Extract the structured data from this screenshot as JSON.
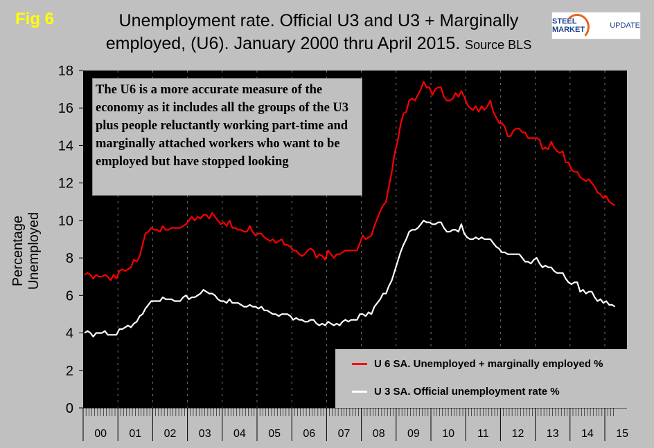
{
  "figure_label": "Fig 6",
  "title_line1": "Unemployment rate. Official U3 and U3 + Marginally",
  "title_line2": "employed, (U6). January 2000 thru April 2015.",
  "source": "Source BLS",
  "logo_text": {
    "a": "STEEL MARKET",
    "b": "UPDATE"
  },
  "annotation": "The U6 is a more accurate measure of the economy as it includes all the groups of the U3 plus people reluctantly working part-time and marginally attached workers who want to be employed but have stopped looking",
  "colors": {
    "background": "#c0c0c0",
    "plot": "#000000",
    "u6": "#ff0000",
    "u3": "#ffffff",
    "fig_label": "#ffff00"
  },
  "chart_data": {
    "type": "line",
    "title": "Unemployment rate. Official U3 and U3 + Marginally employed, (U6). January 2000 thru April 2015.",
    "xlabel": "",
    "ylabel": "Percentage Unemployed",
    "ylim": [
      0,
      18
    ],
    "yticks": [
      "0",
      "2",
      "4",
      "6",
      "8",
      "10",
      "12",
      "14",
      "16",
      "18"
    ],
    "xticks": [
      "00",
      "01",
      "02",
      "03",
      "04",
      "05",
      "06",
      "07",
      "08",
      "09",
      "10",
      "11",
      "12",
      "13",
      "14",
      "15"
    ],
    "x_range": [
      "2000-01",
      "2015-04"
    ],
    "frequency": "monthly",
    "grid": "vertical dashed at year boundaries",
    "legend": "bottom-right",
    "series": [
      {
        "name": "U 6 SA. Unemployed + marginally employed %",
        "color": "#ff0000",
        "values": [
          7.1,
          7.2,
          7.1,
          6.9,
          7.1,
          7.0,
          7.0,
          7.1,
          7.0,
          6.8,
          7.1,
          6.9,
          7.3,
          7.4,
          7.3,
          7.4,
          7.5,
          7.9,
          7.8,
          8.1,
          8.7,
          9.3,
          9.4,
          9.6,
          9.5,
          9.5,
          9.4,
          9.7,
          9.5,
          9.5,
          9.6,
          9.6,
          9.6,
          9.6,
          9.7,
          9.8,
          10.0,
          10.2,
          10.0,
          10.2,
          10.1,
          10.3,
          10.3,
          10.1,
          10.4,
          10.2,
          10.0,
          9.8,
          9.9,
          9.7,
          10.0,
          9.6,
          9.6,
          9.5,
          9.5,
          9.4,
          9.4,
          9.7,
          9.4,
          9.2,
          9.3,
          9.3,
          9.1,
          9.0,
          8.9,
          9.0,
          8.8,
          8.9,
          9.0,
          8.7,
          8.7,
          8.6,
          8.4,
          8.4,
          8.2,
          8.1,
          8.2,
          8.4,
          8.5,
          8.4,
          8.0,
          8.2,
          8.1,
          7.9,
          8.4,
          8.2,
          8.0,
          8.2,
          8.2,
          8.3,
          8.4,
          8.4,
          8.4,
          8.4,
          8.4,
          8.8,
          9.2,
          9.0,
          9.1,
          9.2,
          9.7,
          10.1,
          10.5,
          10.8,
          11.0,
          11.8,
          12.6,
          13.6,
          14.2,
          15.1,
          15.7,
          15.8,
          16.4,
          16.5,
          16.4,
          16.7,
          17.0,
          17.4,
          17.1,
          17.1,
          16.7,
          17.0,
          17.1,
          17.1,
          16.6,
          16.4,
          16.4,
          16.5,
          16.8,
          16.6,
          16.9,
          16.6,
          16.2,
          16.0,
          15.9,
          16.1,
          15.8,
          16.1,
          15.9,
          16.1,
          16.4,
          15.8,
          15.5,
          15.2,
          15.2,
          15.0,
          14.5,
          14.5,
          14.8,
          14.9,
          14.9,
          14.7,
          14.7,
          14.4,
          14.4,
          14.4,
          14.4,
          14.3,
          13.8,
          13.9,
          13.8,
          14.2,
          13.9,
          13.7,
          13.6,
          13.7,
          13.1,
          13.1,
          12.7,
          12.6,
          12.6,
          12.3,
          12.2,
          12.1,
          12.2,
          12.0,
          11.8,
          11.5,
          11.4,
          11.2,
          11.3,
          11.0,
          10.9,
          10.8
        ]
      },
      {
        "name": "U 3 SA. Official unemployment rate %",
        "color": "#ffffff",
        "values": [
          4.0,
          4.1,
          4.0,
          3.8,
          4.0,
          4.0,
          4.0,
          4.1,
          3.9,
          3.9,
          3.9,
          3.9,
          4.2,
          4.2,
          4.3,
          4.4,
          4.3,
          4.5,
          4.6,
          4.9,
          5.0,
          5.3,
          5.5,
          5.7,
          5.7,
          5.7,
          5.7,
          5.9,
          5.8,
          5.8,
          5.8,
          5.7,
          5.7,
          5.7,
          5.9,
          6.0,
          5.8,
          5.9,
          5.9,
          6.0,
          6.1,
          6.3,
          6.2,
          6.1,
          6.1,
          6.0,
          5.8,
          5.7,
          5.7,
          5.6,
          5.8,
          5.6,
          5.6,
          5.6,
          5.5,
          5.4,
          5.4,
          5.5,
          5.4,
          5.4,
          5.3,
          5.4,
          5.2,
          5.2,
          5.1,
          5.0,
          5.0,
          4.9,
          5.0,
          5.0,
          5.0,
          4.9,
          4.7,
          4.8,
          4.7,
          4.7,
          4.6,
          4.6,
          4.7,
          4.7,
          4.5,
          4.4,
          4.5,
          4.4,
          4.6,
          4.5,
          4.4,
          4.5,
          4.4,
          4.6,
          4.7,
          4.6,
          4.7,
          4.7,
          4.7,
          5.0,
          5.0,
          4.9,
          5.1,
          5.0,
          5.4,
          5.6,
          5.8,
          6.1,
          6.1,
          6.5,
          6.8,
          7.3,
          7.8,
          8.3,
          8.7,
          9.0,
          9.4,
          9.5,
          9.5,
          9.6,
          9.8,
          10.0,
          9.9,
          9.9,
          9.8,
          9.8,
          9.9,
          9.9,
          9.6,
          9.4,
          9.4,
          9.5,
          9.5,
          9.4,
          9.8,
          9.3,
          9.1,
          9.0,
          9.0,
          9.1,
          9.0,
          9.1,
          9.0,
          9.0,
          9.0,
          8.8,
          8.6,
          8.5,
          8.3,
          8.3,
          8.2,
          8.2,
          8.2,
          8.2,
          8.2,
          8.0,
          7.8,
          7.8,
          7.7,
          7.9,
          8.0,
          7.7,
          7.5,
          7.6,
          7.5,
          7.5,
          7.3,
          7.2,
          7.2,
          7.2,
          6.9,
          6.7,
          6.6,
          6.7,
          6.7,
          6.2,
          6.3,
          6.1,
          6.2,
          6.2,
          5.9,
          5.7,
          5.8,
          5.6,
          5.7,
          5.5,
          5.5,
          5.4
        ]
      }
    ]
  }
}
